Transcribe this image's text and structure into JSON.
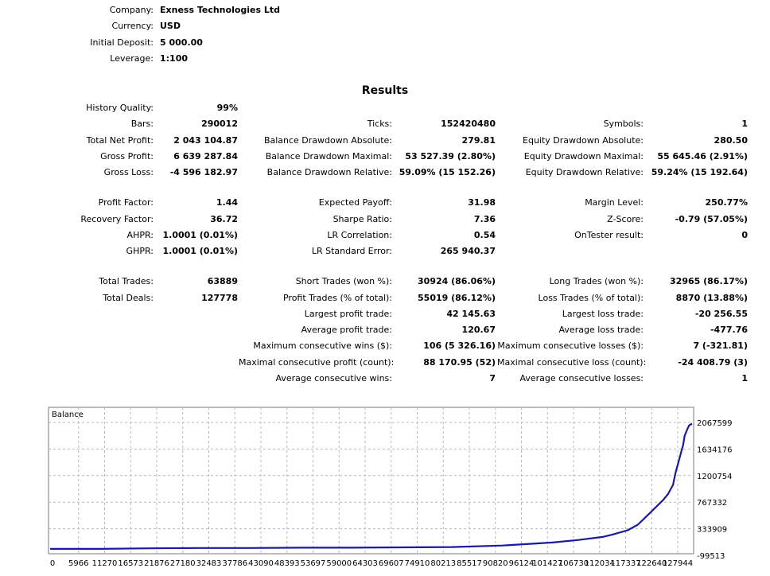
{
  "header": [
    {
      "label": "Company:",
      "value": "Exness Technologies Ltd"
    },
    {
      "label": "Currency:",
      "value": "USD"
    },
    {
      "label": "Initial Deposit:",
      "value": "5 000.00"
    },
    {
      "label": "Leverage:",
      "value": "1:100"
    }
  ],
  "results_title": "Results",
  "rows": [
    [
      [
        "History Quality:",
        "99%"
      ],
      null,
      null
    ],
    [
      [
        "Bars:",
        "290012"
      ],
      [
        "Ticks:",
        "152420480"
      ],
      [
        "Symbols:",
        "1"
      ]
    ],
    [
      [
        "Total Net Profit:",
        "2 043 104.87"
      ],
      [
        "Balance Drawdown Absolute:",
        "279.81"
      ],
      [
        "Equity Drawdown Absolute:",
        "280.50"
      ]
    ],
    [
      [
        "Gross Profit:",
        "6 639 287.84"
      ],
      [
        "Balance Drawdown Maximal:",
        "53 527.39 (2.80%)"
      ],
      [
        "Equity Drawdown Maximal:",
        "55 645.46 (2.91%)"
      ]
    ],
    [
      [
        "Gross Loss:",
        "-4 596 182.97"
      ],
      [
        "Balance Drawdown Relative:",
        "59.09% (15 152.26)"
      ],
      [
        "Equity Drawdown Relative:",
        "59.24% (15 192.64)"
      ]
    ],
    [
      [
        "Profit Factor:",
        "1.44"
      ],
      [
        "Expected Payoff:",
        "31.98"
      ],
      [
        "Margin Level:",
        "250.77%"
      ]
    ],
    [
      [
        "Recovery Factor:",
        "36.72"
      ],
      [
        "Sharpe Ratio:",
        "7.36"
      ],
      [
        "Z-Score:",
        "-0.79 (57.05%)"
      ]
    ],
    [
      [
        "AHPR:",
        "1.0001 (0.01%)"
      ],
      [
        "LR Correlation:",
        "0.54"
      ],
      [
        "OnTester result:",
        "0"
      ]
    ],
    [
      [
        "GHPR:",
        "1.0001 (0.01%)"
      ],
      [
        "LR Standard Error:",
        "265 940.37"
      ],
      null
    ],
    [
      [
        "Total Trades:",
        "63889"
      ],
      [
        "Short Trades (won %):",
        "30924 (86.06%)"
      ],
      [
        "Long Trades (won %):",
        "32965 (86.17%)"
      ]
    ],
    [
      [
        "Total Deals:",
        "127778"
      ],
      [
        "Profit Trades (% of total):",
        "55019 (86.12%)"
      ],
      [
        "Loss Trades (% of total):",
        "8870 (13.88%)"
      ]
    ],
    [
      null,
      [
        "Largest profit trade:",
        "42 145.63"
      ],
      [
        "Largest loss trade:",
        "-20 256.55"
      ]
    ],
    [
      null,
      [
        "Average profit trade:",
        "120.67"
      ],
      [
        "Average loss trade:",
        "-477.76"
      ]
    ],
    [
      null,
      [
        "Maximum consecutive wins ($):",
        "106 (5 326.16)"
      ],
      [
        "Maximum consecutive losses ($):",
        "7 (-321.81)"
      ]
    ],
    [
      null,
      [
        "Maximal consecutive profit (count):",
        "88 170.95 (52)"
      ],
      [
        "Maximal consecutive loss (count):",
        "-24 408.79 (3)"
      ]
    ],
    [
      null,
      [
        "Average consecutive wins:",
        "7"
      ],
      [
        "Average consecutive losses:",
        "1"
      ]
    ]
  ],
  "chart_data": {
    "type": "line",
    "title": "Balance",
    "x_ticks": [
      "0",
      "5966",
      "11270",
      "16573",
      "21876",
      "27180",
      "32483",
      "37786",
      "43090",
      "48393",
      "53697",
      "59000",
      "64303",
      "69607",
      "74910",
      "80213",
      "85517",
      "90820",
      "96124",
      "101427",
      "106730",
      "112034",
      "117337",
      "122640",
      "127944"
    ],
    "y_ticks": [
      "2067599",
      "1634176",
      "1200754",
      "767332",
      "333909",
      "-99513"
    ],
    "ylim": [
      -99513,
      2067599
    ],
    "xlim": [
      0,
      127778
    ],
    "line_color": "#1a1aa0",
    "series": [
      {
        "x": [
          0,
          10000,
          20000,
          30000,
          40000,
          50000,
          60000,
          70000,
          80000,
          90000,
          100000,
          105000,
          110000,
          112000,
          115000,
          117000,
          119000,
          121000,
          122000,
          123000,
          124000,
          124500,
          125000,
          125500,
          126000,
          126300,
          126800,
          127200,
          127778
        ],
        "values": [
          5000,
          5000,
          15000,
          20000,
          20000,
          25000,
          25000,
          30000,
          35000,
          60000,
          110000,
          150000,
          200000,
          240000,
          310000,
          400000,
          560000,
          720000,
          800000,
          900000,
          1050000,
          1250000,
          1400000,
          1550000,
          1700000,
          1850000,
          1950000,
          2020000,
          2048105
        ]
      }
    ]
  }
}
